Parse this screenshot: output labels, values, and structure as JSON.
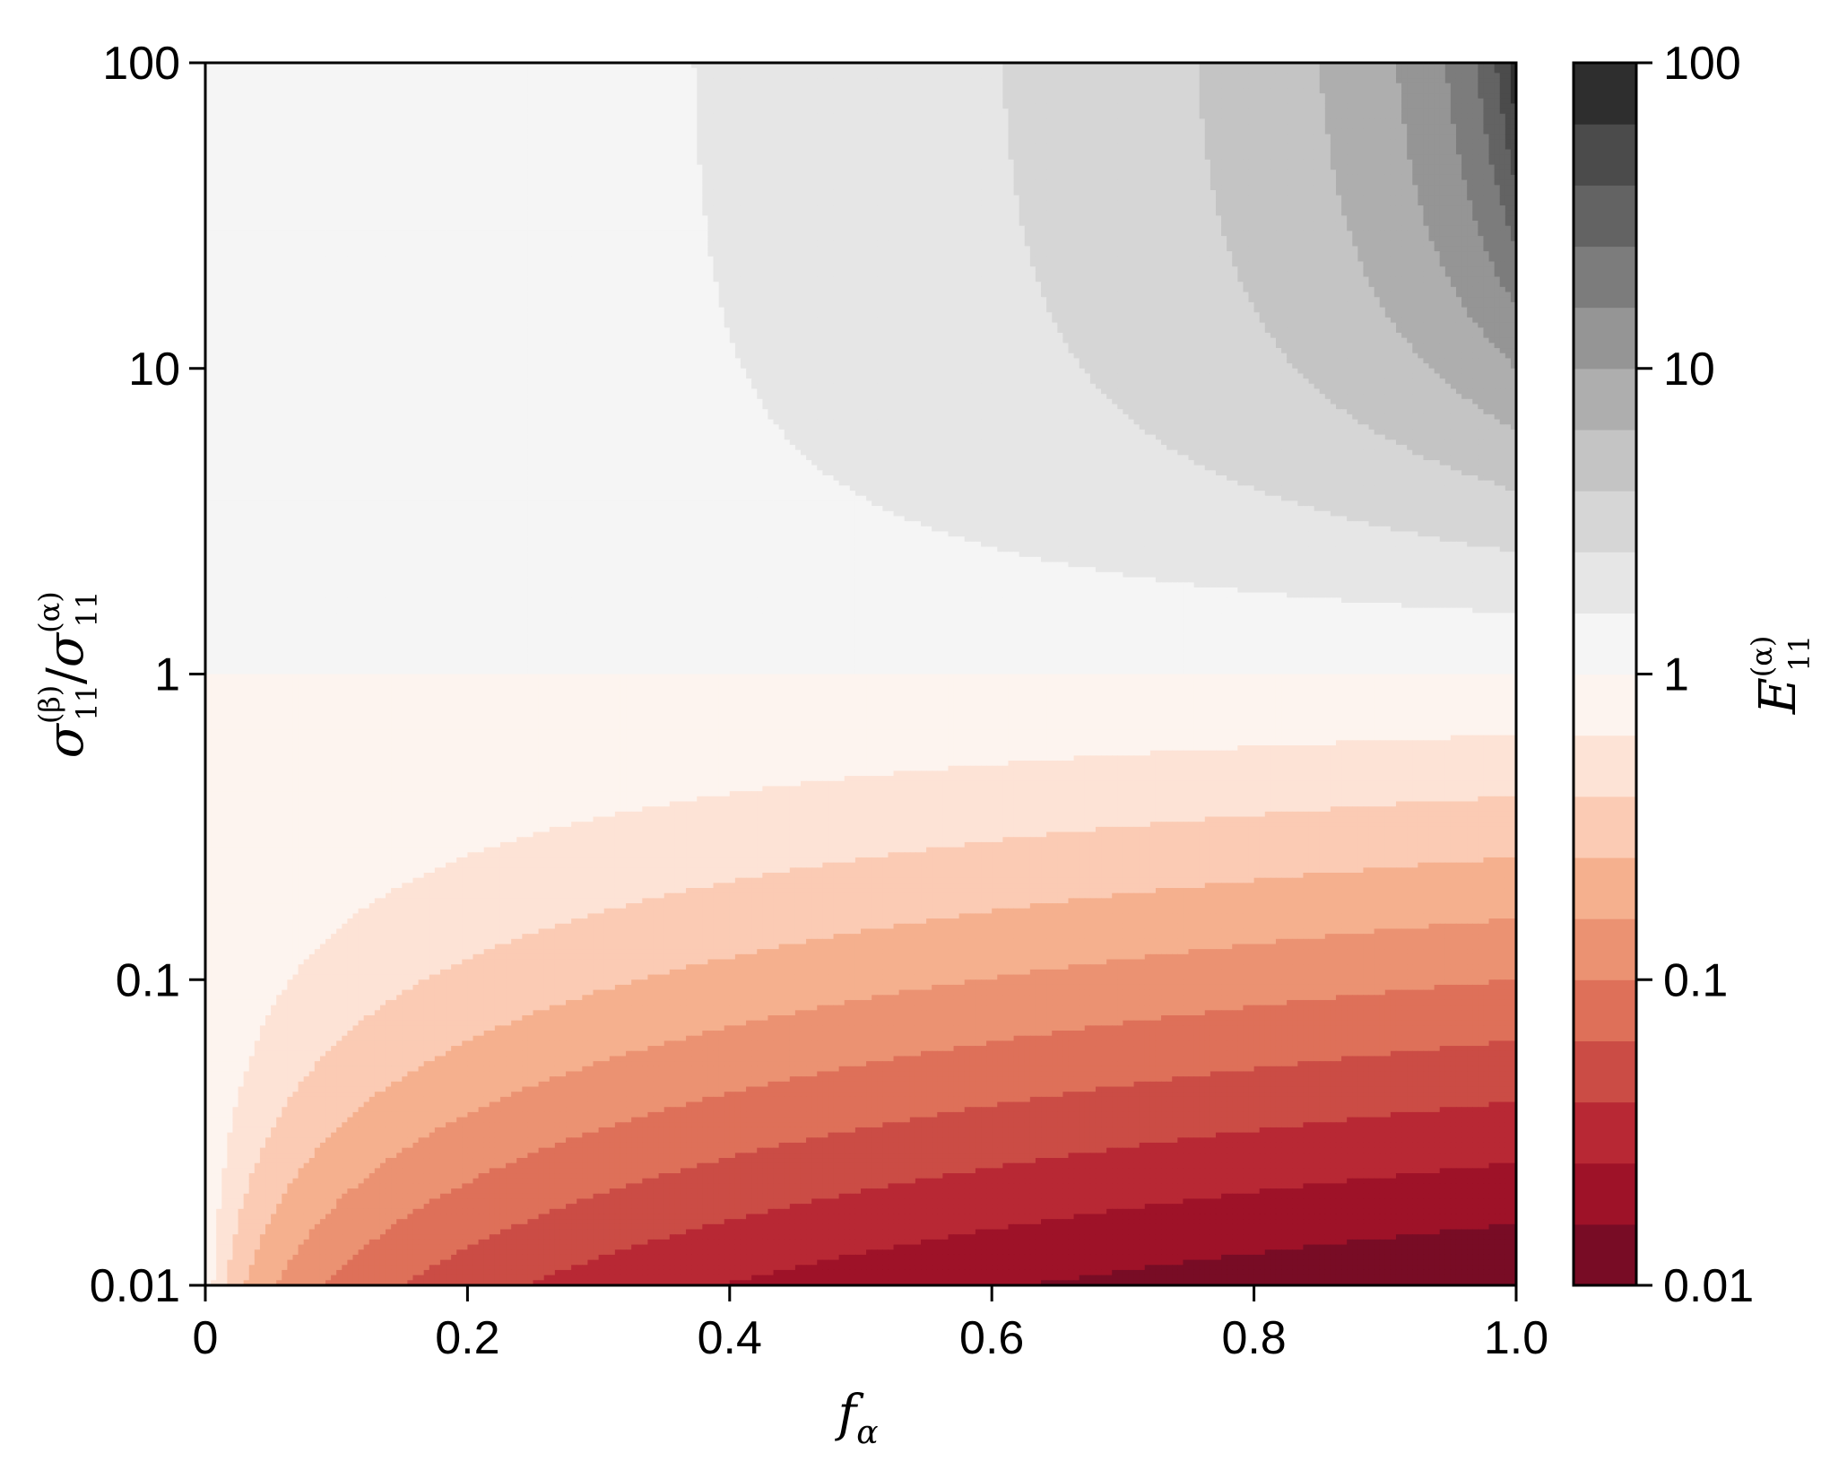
{
  "chart_data": {
    "type": "heatmap",
    "subtype": "filled-contour",
    "xlabel": {
      "base": "f",
      "subscript": "α"
    },
    "ylabel": {
      "numerator": {
        "base": "σ",
        "superscript": "(β)",
        "subscript": "11"
      },
      "separator": "/",
      "denominator": {
        "base": "σ",
        "superscript": "(α)",
        "subscript": "11"
      }
    },
    "colorbar_label": {
      "base": "E",
      "superscript": "(α)",
      "subscript": "11"
    },
    "xlim": [
      0,
      1.0
    ],
    "ylim": [
      0.01,
      100
    ],
    "yscale": "log",
    "x_ticks": [
      0,
      0.2,
      0.4,
      0.6,
      0.8,
      1.0
    ],
    "x_tick_labels": [
      "0",
      "0.2",
      "0.4",
      "0.6",
      "0.8",
      "1.0"
    ],
    "y_ticks": [
      0.01,
      0.1,
      1,
      10,
      100
    ],
    "y_tick_labels": [
      "0.01",
      "0.1",
      "1",
      "10",
      "100"
    ],
    "z_field": "E = r / (f + (1 - f) * r), where r = y-axis ratio and f = x-axis value",
    "colorbar": {
      "scale": "log",
      "range": [
        0.01,
        100
      ],
      "ticks": [
        0.01,
        0.1,
        1,
        10,
        100
      ],
      "tick_labels": [
        "0.01",
        "0.1",
        "1",
        "10",
        "100"
      ],
      "levels_log10": [
        -2,
        -1.8,
        -1.6,
        -1.4,
        -1.2,
        -1,
        -0.8,
        -0.6,
        -0.4,
        -0.2,
        0,
        0.2,
        0.4,
        0.6,
        0.8,
        1,
        1.2,
        1.4,
        1.6,
        1.8,
        2
      ],
      "colors": [
        "#780c25",
        "#9e1228",
        "#b82834",
        "#cb4c45",
        "#de7059",
        "#eb9272",
        "#f5b08e",
        "#fbcbb4",
        "#fde3d6",
        "#fdf4ef",
        "#f5f5f5",
        "#e6e6e6",
        "#d6d6d6",
        "#c4c4c4",
        "#aeaeae",
        "#959595",
        "#7c7c7c",
        "#636363",
        "#4b4b4b",
        "#2e2e2e"
      ]
    },
    "grid": false,
    "legend": "none"
  }
}
